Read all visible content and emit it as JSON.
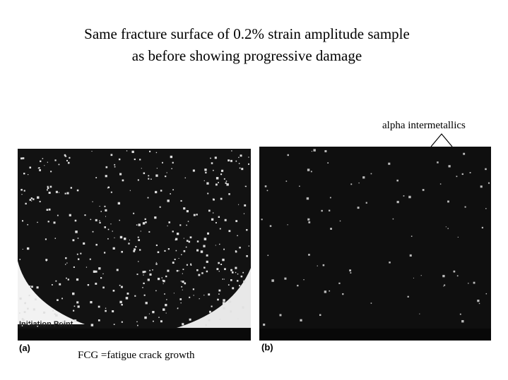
{
  "title": {
    "line1": "Same fracture surface of 0.2% strain  amplitude sample",
    "line2": "as before showing progressive damage"
  },
  "annotation": "alpha intermetallics",
  "image_a": {
    "inner_label": "Initiation Point",
    "caption": "(a)"
  },
  "image_b": {
    "caption": "(b)"
  },
  "footnote": "FCG =fatigue crack growth"
}
